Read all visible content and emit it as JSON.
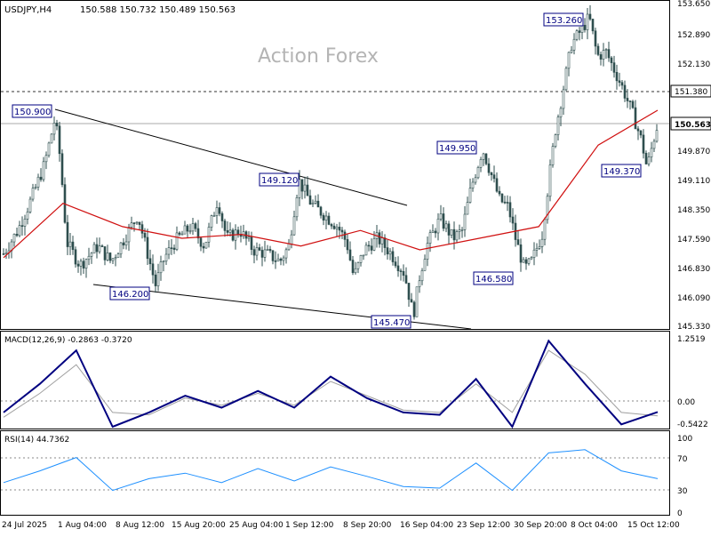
{
  "header": {
    "symbol_tf": "USDJPY,H4",
    "ohlc": "150.588 150.732 150.489 150.563"
  },
  "watermark": "Action Forex",
  "colors": {
    "candle": "#2f4f4f",
    "ma": "#d01010",
    "macd": "#000080",
    "signal": "#a0a0a0",
    "rsi": "#1e90ff",
    "box_border": "#000080",
    "frame": "#000000"
  },
  "chart_data": [
    {
      "type": "candlestick",
      "title": "USDJPY,H4",
      "ylim": [
        145.33,
        153.65
      ],
      "y_ticks": [
        "153.650",
        "152.890",
        "152.130",
        "151.380",
        "150.563",
        "149.870",
        "149.110",
        "148.350",
        "147.590",
        "146.830",
        "146.090",
        "145.330"
      ],
      "x_ticks": [
        "24 Jul 2025",
        "1 Aug 04:00",
        "8 Aug 12:00",
        "15 Aug 20:00",
        "25 Aug 04:00",
        "1 Sep 12:00",
        "8 Sep 20:00",
        "16 Sep 04:00",
        "23 Sep 12:00",
        "30 Sep 20:00",
        "8 Oct 04:00",
        "15 Oct 12:00"
      ],
      "current_price": "150.563",
      "resistance_line": "151.380",
      "moving_average": [
        {
          "x": "24 Jul 2025",
          "y": 147.1
        },
        {
          "x": "1 Aug 04:00",
          "y": 148.5
        },
        {
          "x": "8 Aug 12:00",
          "y": 147.9
        },
        {
          "x": "15 Aug 20:00",
          "y": 147.6
        },
        {
          "x": "25 Aug 04:00",
          "y": 147.7
        },
        {
          "x": "1 Sep 12:00",
          "y": 147.4
        },
        {
          "x": "8 Sep 20:00",
          "y": 147.8
        },
        {
          "x": "16 Sep 04:00",
          "y": 147.3
        },
        {
          "x": "23 Sep 12:00",
          "y": 147.6
        },
        {
          "x": "30 Sep 20:00",
          "y": 147.9
        },
        {
          "x": "8 Oct 04:00",
          "y": 150.0
        },
        {
          "x": "15 Oct 12:00",
          "y": 150.9
        }
      ],
      "annotations": [
        "150.900",
        "149.120",
        "146.200",
        "145.470",
        "149.950",
        "146.580",
        "153.260",
        "149.370"
      ]
    },
    {
      "type": "line",
      "title": "MACD(12,26,9) -0.2863 -0.3720",
      "series": [
        {
          "name": "MACD",
          "values": [
            -0.3,
            0.3,
            1.0,
            -0.6,
            -0.3,
            0.05,
            -0.2,
            0.15,
            -0.2,
            0.45,
            0.0,
            -0.3,
            -0.35,
            0.4,
            -0.6,
            1.2,
            0.3,
            -0.55,
            -0.29
          ]
        },
        {
          "name": "Signal",
          "values": [
            -0.4,
            0.1,
            0.7,
            -0.3,
            -0.35,
            0.0,
            -0.15,
            0.1,
            -0.15,
            0.35,
            0.05,
            -0.25,
            -0.3,
            0.3,
            -0.3,
            1.0,
            0.5,
            -0.3,
            -0.37
          ]
        }
      ],
      "y_ticks": [
        "1.2519",
        "0.00",
        "-0.5422"
      ],
      "ylim": [
        -0.6,
        1.3
      ]
    },
    {
      "type": "line",
      "title": "RSI(14) 44.7362",
      "series": [
        {
          "name": "RSI",
          "values": [
            40,
            55,
            72,
            30,
            45,
            52,
            40,
            58,
            42,
            60,
            48,
            35,
            33,
            65,
            30,
            78,
            82,
            55,
            45
          ]
        }
      ],
      "y_ticks": [
        "100",
        "70",
        "30",
        "0"
      ],
      "ylim": [
        0,
        100
      ]
    }
  ]
}
